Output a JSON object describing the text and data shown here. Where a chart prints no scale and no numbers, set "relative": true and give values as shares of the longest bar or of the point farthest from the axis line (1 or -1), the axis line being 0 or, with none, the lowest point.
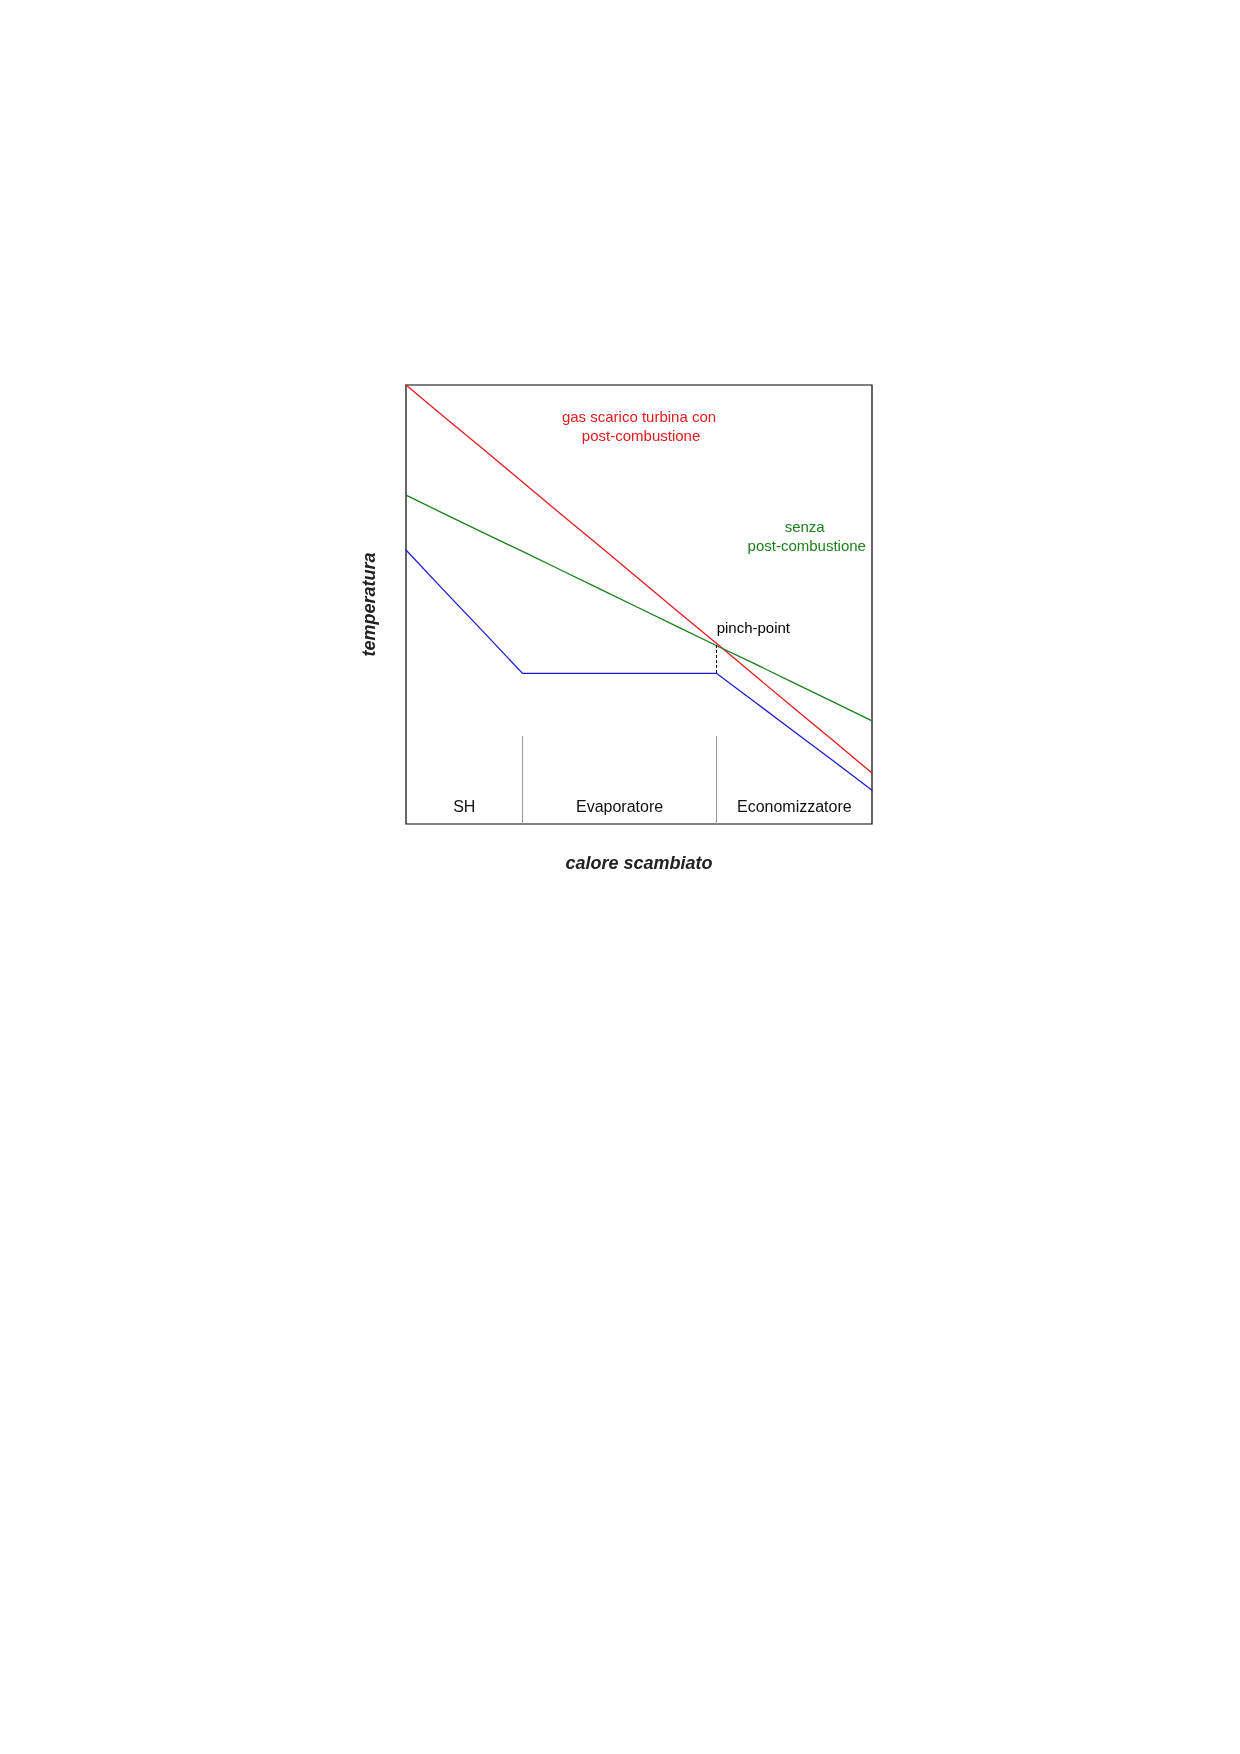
{
  "chart_data": {
    "type": "line",
    "xlabel": "calore scambiato",
    "ylabel": "temperatura",
    "relative": true,
    "grid": false,
    "legend": false,
    "marker": "none",
    "line_style": "solid",
    "categories": [
      null,
      null,
      null,
      null,
      null,
      null,
      null,
      null,
      null,
      null,
      null,
      null,
      null
    ],
    "series": [
      {
        "name": "gas scarico turbina con post-combustione",
        "color": "#e41a1c",
        "values": [
          1,
          0.926,
          0.853,
          0.779,
          0.705,
          0.632,
          0.558,
          0.484,
          0.411,
          0.337,
          0.263,
          0.19,
          0.116
        ]
      },
      {
        "name": "senza post-combustione",
        "color": "#1a7f1a",
        "values": [
          0.749,
          0.706,
          0.663,
          0.621,
          0.578,
          0.535,
          0.492,
          0.449,
          0.406,
          0.364,
          0.321,
          0.278,
          0.235
        ]
      },
      {
        "color": "#1c1cd4",
        "values": [
          0.624,
          0.53,
          0.437,
          0.343,
          0.343,
          0.343,
          0.343,
          0.343,
          0.343,
          0.277,
          0.21,
          0.144,
          0.077
        ]
      }
    ],
    "annotations": [
      "SH",
      "Evaporatore",
      "Economizzatore",
      "pinch-point"
    ]
  }
}
